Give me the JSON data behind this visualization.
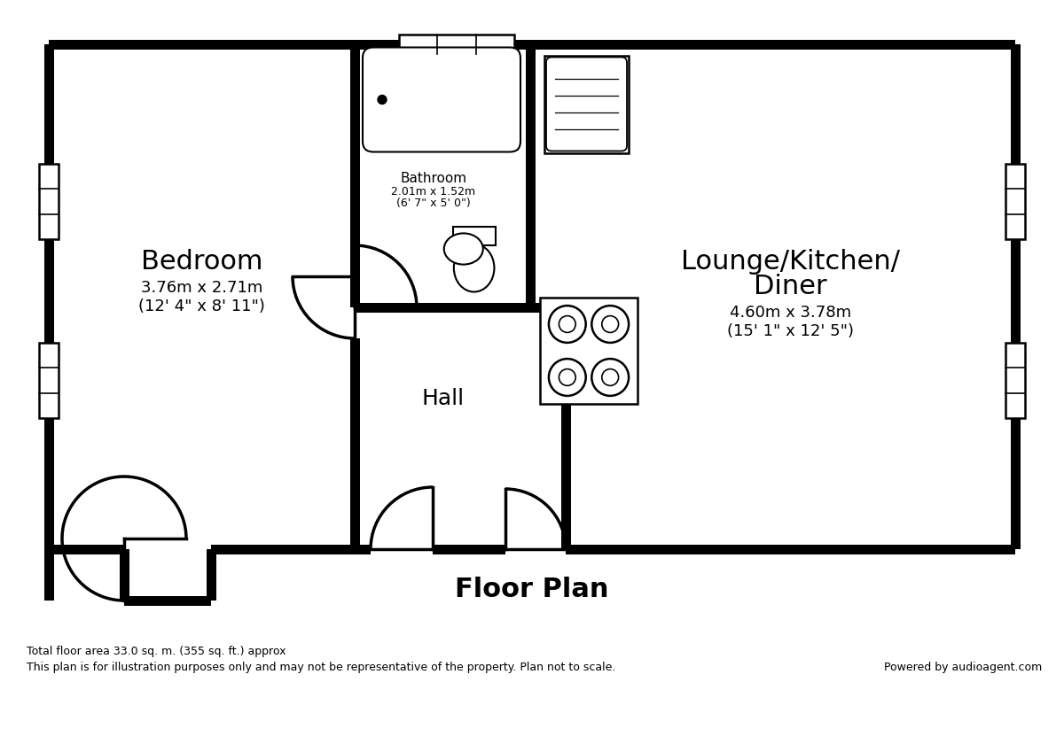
{
  "bg_color": "#ffffff",
  "wall_color": "#000000",
  "title": "Floor Plan",
  "title_fontsize": 22,
  "footer_line1": "Total floor area 33.0 sq. m. (355 sq. ft.) approx",
  "footer_line2": "This plan is for illustration purposes only and may not be representative of the property. Plan not to scale.",
  "footer_right": "Powered by audioagent.com",
  "bedroom_label": "Bedroom",
  "bedroom_dims": "3.76m x 2.71m",
  "bedroom_dims2": "(12' 4\" x 8' 11\")",
  "bathroom_label": "Bathroom",
  "bathroom_dims": "2.01m x 1.52m",
  "bathroom_dims2": "(6' 7\" x 5' 0\")",
  "lounge_label1": "Lounge/Kitchen/",
  "lounge_label2": "Diner",
  "lounge_dims": "4.60m x 3.78m",
  "lounge_dims2": "(15' 1\" x 12' 5\")",
  "hall_label": "Hall",
  "wt": 11
}
